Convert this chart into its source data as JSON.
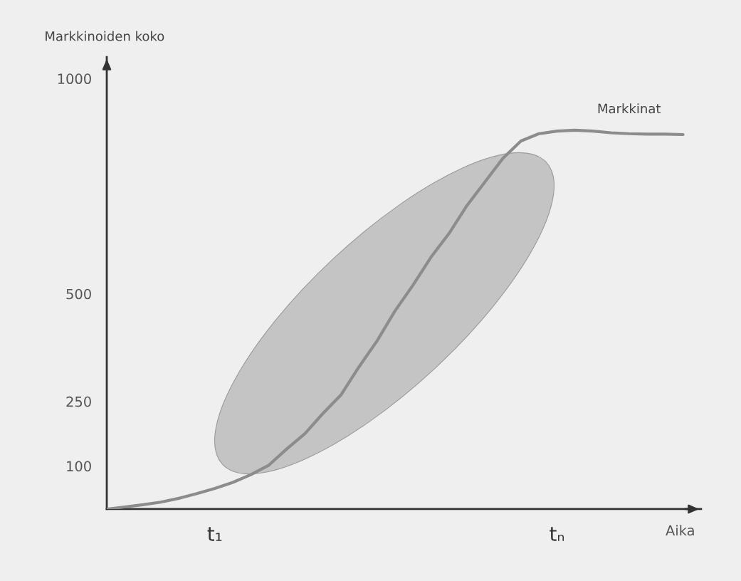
{
  "chart_data": {
    "type": "line",
    "ylabel": "Markkinoiden koko",
    "xlabel": "Aika",
    "categories": [
      null,
      null,
      null,
      null,
      null,
      null,
      "t₁",
      null,
      null,
      null,
      null,
      null,
      null,
      null,
      null,
      null,
      null,
      null,
      null,
      null,
      null,
      null,
      null,
      null,
      null,
      "tₙ",
      null,
      null,
      null,
      null,
      null,
      null,
      null
    ],
    "series": [
      {
        "name": "Markkinat",
        "color": "#8c8c8c",
        "values": [
          0,
          5,
          10,
          16,
          25,
          36,
          48,
          62,
          80,
          102,
          140,
          175,
          222,
          265,
          330,
          390,
          460,
          520,
          585,
          640,
          705,
          760,
          815,
          855,
          872,
          878,
          880,
          878,
          874,
          872,
          871,
          871,
          870
        ]
      }
    ],
    "ylim": [
      0,
      1050
    ],
    "yticks": [
      100,
      250,
      500,
      1000
    ],
    "grid": false,
    "legend": false,
    "marker": "none",
    "line_style": "solid"
  }
}
